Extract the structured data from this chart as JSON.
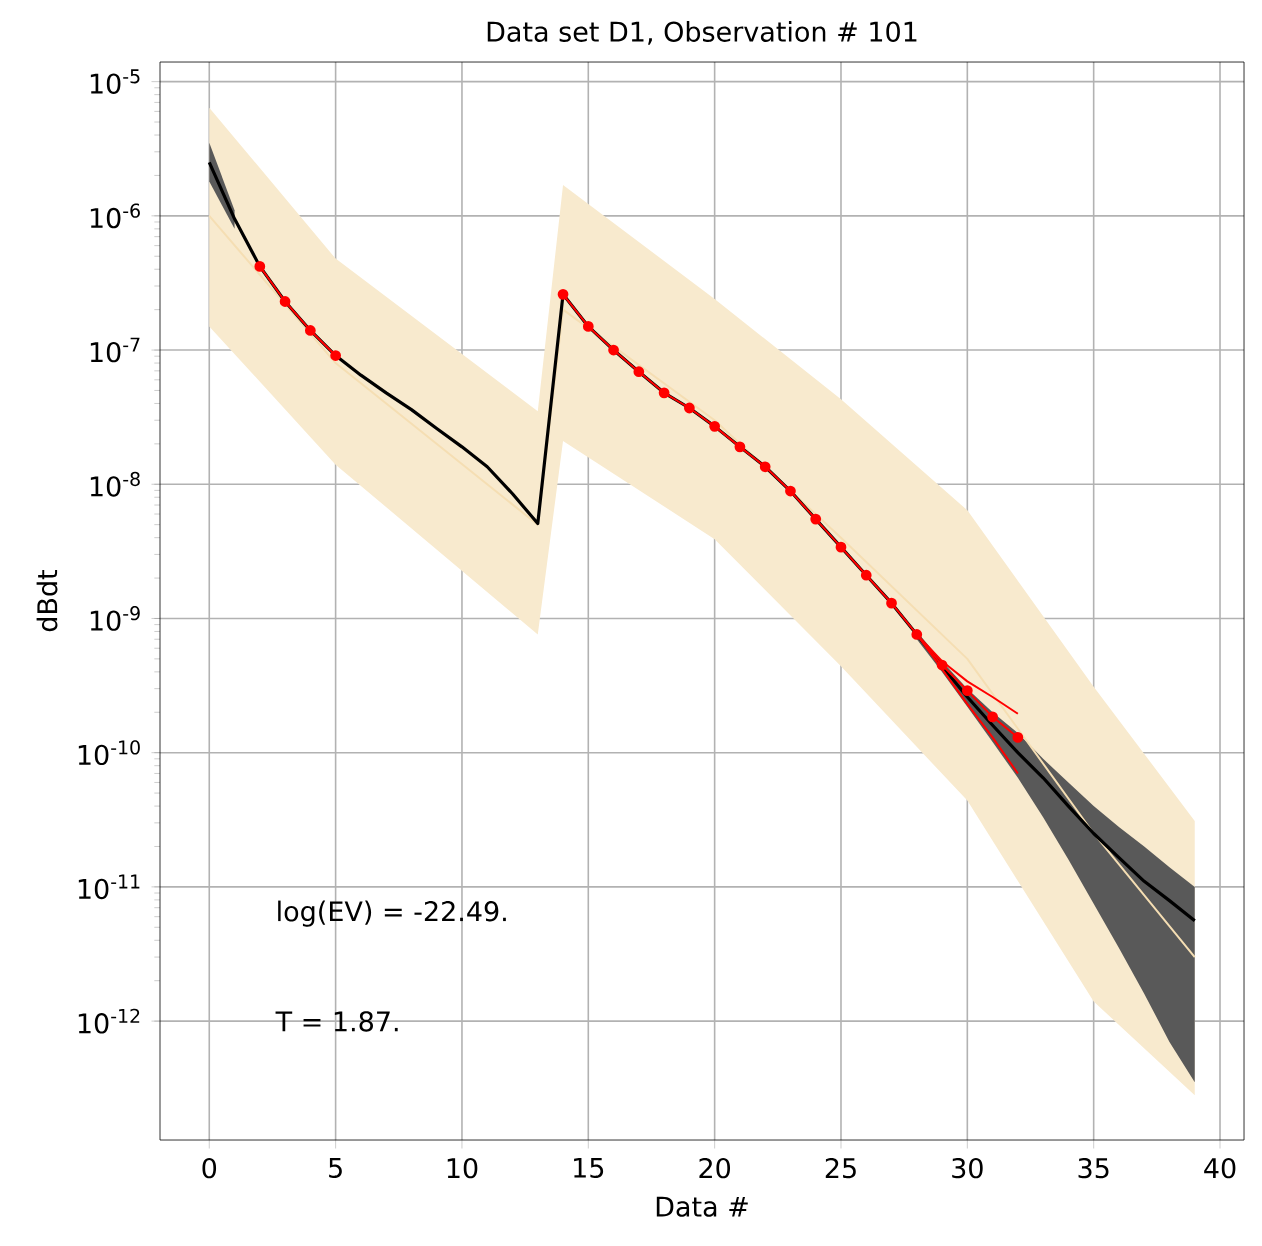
{
  "chart_data": {
    "type": "line",
    "title": "Data set D1, Observation # 101",
    "xlabel": "Data #",
    "ylabel": "dBdt",
    "log": "y",
    "grid": true,
    "xlim": [
      -1.95,
      40.95
    ],
    "xticks": [
      0,
      5,
      10,
      15,
      20,
      25,
      30,
      35,
      40
    ],
    "ylim": [
      1.3e-13,
      1.4e-05
    ],
    "yticks": [
      {
        "value": 1e-12,
        "label": "10$^{-12}$"
      },
      {
        "value": 1e-11,
        "label": "10$^{-11}$"
      },
      {
        "value": 1e-10,
        "label": "10$^{-10}$"
      },
      {
        "value": 1e-09,
        "label": "10$^{-9}$"
      },
      {
        "value": 1e-08,
        "label": "10$^{-8}$"
      },
      {
        "value": 1e-07,
        "label": "10$^{-7}$"
      },
      {
        "value": 1e-06,
        "label": "10$^{-6}$"
      },
      {
        "value": 1e-05,
        "label": "10$^{-5}$"
      }
    ],
    "annotations": [
      "log(EV) = -22.49.",
      "T = 1.87."
    ],
    "series": [
      {
        "type": "line",
        "color": "#f5deb3",
        "x": [
          0,
          5,
          13,
          14,
          20,
          25,
          30,
          35,
          39
        ],
        "values": [
          1e-06,
          8e-08,
          5e-09,
          2e-07,
          3e-08,
          4e-09,
          5e-10,
          2.5e-11,
          3e-12
        ],
        "lower": [
          1.5e-07,
          1.4e-08,
          7.6e-10,
          2.1e-08,
          3.9e-09,
          4.4e-10,
          4.4e-11,
          1.4e-12,
          2.8e-13
        ],
        "upper": [
          6.4e-06,
          4.8e-07,
          3.5e-08,
          1.7e-06,
          2.4e-07,
          4.3e-08,
          6.4e-09,
          3.1e-10,
          3.1e-11
        ]
      },
      {
        "type": "line",
        "color": "#000000",
        "x": [
          0,
          1,
          2,
          3,
          4,
          5,
          6,
          7,
          8,
          9,
          10,
          11,
          12,
          13,
          14,
          15,
          16,
          17,
          18,
          19,
          20,
          21,
          22,
          23,
          24,
          25,
          26,
          27,
          28,
          29,
          30,
          31,
          32,
          33,
          34,
          35,
          36,
          37,
          38,
          39
        ],
        "values": [
          2.5e-06,
          9.5e-07,
          4.2e-07,
          2.3e-07,
          1.4e-07,
          9.1e-08,
          6.5e-08,
          4.8e-08,
          3.6e-08,
          2.6e-08,
          1.9e-08,
          1.35e-08,
          8.5e-09,
          5.1e-09,
          2.6e-07,
          1.5e-07,
          1e-07,
          6.9e-08,
          4.8e-08,
          3.7e-08,
          2.7e-08,
          1.9e-08,
          1.35e-08,
          8.9e-09,
          5.5e-09,
          3.4e-09,
          2.1e-09,
          1.3e-09,
          7.6e-10,
          4.4e-10,
          2.6e-10,
          1.6e-10,
          1e-10,
          6.5e-11,
          4e-11,
          2.5e-11,
          1.65e-11,
          1.1e-11,
          7.9e-12,
          5.6e-12
        ],
        "lower": [
          1.8e-06,
          8e-07,
          null,
          null,
          null,
          null,
          null,
          null,
          null,
          null,
          null,
          null,
          null,
          null,
          null,
          null,
          null,
          null,
          null,
          null,
          null,
          null,
          null,
          null,
          null,
          null,
          null,
          null,
          7e-10,
          4e-10,
          2.2e-10,
          1.2e-10,
          6.5e-11,
          3.3e-11,
          1.6e-11,
          7.5e-12,
          3.5e-12,
          1.6e-12,
          7e-13,
          3.5e-13
        ],
        "upper": [
          3.5e-06,
          1.1e-06,
          null,
          null,
          null,
          null,
          null,
          null,
          null,
          null,
          null,
          null,
          null,
          null,
          null,
          null,
          null,
          null,
          null,
          null,
          null,
          null,
          null,
          null,
          null,
          null,
          null,
          null,
          8e-10,
          4.8e-10,
          3e-10,
          2e-10,
          1.4e-10,
          9e-11,
          6e-11,
          4e-11,
          2.8e-11,
          2e-11,
          1.4e-11,
          1e-11
        ]
      },
      {
        "type": "line",
        "color": "#ff0000",
        "x": [
          28,
          29,
          30,
          31,
          32
        ],
        "values": [
          7.6e-10,
          4.8e-10,
          3.4e-10,
          2.6e-10,
          1.95e-10
        ]
      },
      {
        "type": "line",
        "color": "#ff0000",
        "x": [
          28,
          29,
          30,
          31,
          32
        ],
        "values": [
          7.6e-10,
          4.2e-10,
          2.3e-10,
          1.3e-10,
          7e-11
        ]
      },
      {
        "type": "line",
        "marker": "circle",
        "color": "#ff0000",
        "x": [
          2,
          3,
          4,
          5,
          6,
          7,
          8,
          9,
          10,
          11,
          12,
          13,
          14,
          15,
          16,
          17,
          18,
          19,
          20,
          21,
          22,
          23,
          24,
          25,
          26,
          27,
          28,
          29,
          30,
          31,
          32
        ],
        "values": [
          4.2e-07,
          2.3e-07,
          1.4e-07,
          9.1e-08,
          null,
          null,
          null,
          null,
          null,
          null,
          null,
          null,
          2.6e-07,
          1.5e-07,
          1e-07,
          6.9e-08,
          4.8e-08,
          3.7e-08,
          2.7e-08,
          1.9e-08,
          1.35e-08,
          8.9e-09,
          5.5e-09,
          3.4e-09,
          2.1e-09,
          1.3e-09,
          7.6e-10,
          4.5e-10,
          2.9e-10,
          1.85e-10,
          1.3e-10
        ]
      }
    ]
  }
}
